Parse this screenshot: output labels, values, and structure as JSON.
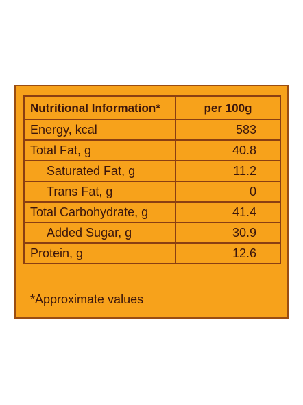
{
  "header": {
    "name": "Nutritional Information*",
    "value": "per 100g"
  },
  "rows": [
    {
      "name": "Energy, kcal",
      "value": "583"
    },
    {
      "name": "Total Fat, g",
      "value": "40.8"
    },
    {
      "name": "Saturated Fat, g",
      "value": "11.2"
    },
    {
      "name": "Trans Fat, g",
      "value": "0"
    },
    {
      "name": "Total Carbohydrate, g",
      "value": "41.4"
    },
    {
      "name": "Added Sugar, g",
      "value": "30.9"
    },
    {
      "name": "Protein, g",
      "value": "12.6"
    }
  ],
  "footnote": "*Approximate values",
  "colors": {
    "panel": "#f7a21b",
    "border": "#8a3f12",
    "text": "#3b160c"
  }
}
